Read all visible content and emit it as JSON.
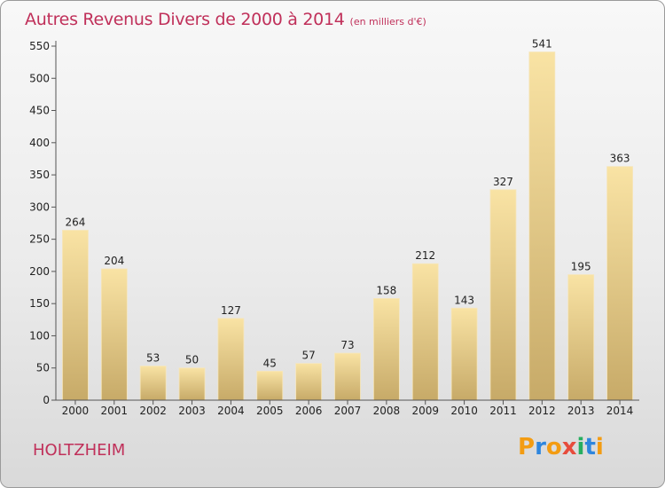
{
  "chart_data": {
    "type": "bar",
    "title": "Autres Revenus Divers de 2000 à 2014",
    "unit": "(en milliers d'€)",
    "categories": [
      "2000",
      "2001",
      "2002",
      "2003",
      "2004",
      "2005",
      "2006",
      "2007",
      "2008",
      "2009",
      "2010",
      "2011",
      "2012",
      "2013",
      "2014"
    ],
    "values": [
      264,
      204,
      53,
      50,
      127,
      45,
      57,
      73,
      158,
      212,
      143,
      327,
      541,
      195,
      363
    ],
    "ylim": [
      0,
      550
    ],
    "yticks": [
      0,
      50,
      100,
      150,
      200,
      250,
      300,
      350,
      400,
      450,
      500,
      550
    ],
    "grid": false,
    "xlabel": "",
    "ylabel": ""
  },
  "place": "HOLTZHEIM",
  "brand": {
    "letters": [
      "P",
      "r",
      "o",
      "x",
      "i",
      "t",
      "i"
    ],
    "colors": [
      "#f39c12",
      "#2e86de",
      "#f39c12",
      "#e74c3c",
      "#27ae60",
      "#2e86de",
      "#f39c12"
    ]
  },
  "colors": {
    "accent": "#c0305a",
    "bar_light": "#f7dfa0",
    "bar_dark": "#c9ad6a"
  }
}
